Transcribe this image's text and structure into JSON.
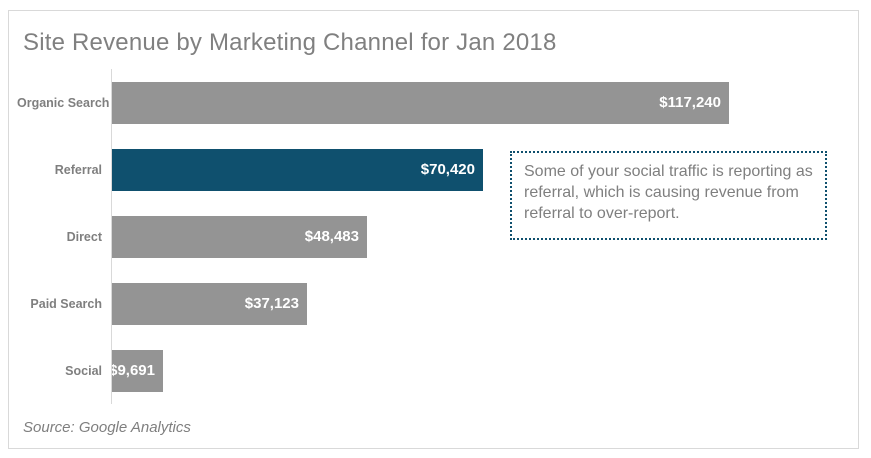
{
  "title": "Site Revenue by Marketing Channel for Jan 2018",
  "source_note": "Source: Google Analytics",
  "annotation": {
    "text": "Some of your social traffic is reporting as referral, which is causing revenue from referral to over-report."
  },
  "colors": {
    "bar_default": "#949494",
    "bar_highlight": "#0f506e",
    "value_text": "#ffffff",
    "label_text": "#7f7f7f",
    "title_text": "#808080",
    "axis_line": "#d9d9d9",
    "annotation_border": "#0f506e",
    "card_border": "#d9d9d9"
  },
  "chart_data": {
    "type": "bar",
    "orientation": "horizontal",
    "title": "Site Revenue by Marketing Channel for Jan 2018",
    "categories": [
      "Organic Search",
      "Referral",
      "Direct",
      "Paid Search",
      "Social"
    ],
    "values": [
      117240,
      70420,
      48483,
      37123,
      9691
    ],
    "value_labels": [
      "$117,240",
      "$70,420",
      "$48,483",
      "$37,123",
      "$9,691"
    ],
    "highlight_index": 1,
    "xlim": [
      0,
      117240
    ],
    "xlabel": "",
    "ylabel": "",
    "grid": false,
    "legend": false,
    "value_label_position": "inside-end",
    "annotation": "Some of your social traffic is reporting as referral, which is causing revenue from referral to over-report.",
    "source": "Source: Google Analytics"
  }
}
